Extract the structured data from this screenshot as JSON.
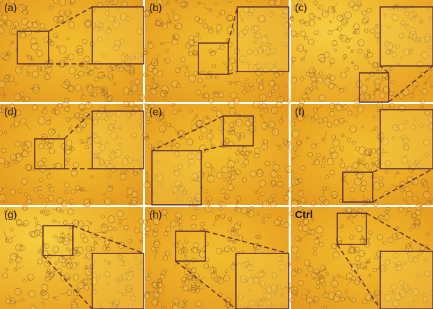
{
  "panels": [
    "(a)",
    "(b)",
    "(c)",
    "(d)",
    "(e)",
    "(f)",
    "(g)",
    "(h)",
    "Ctrl"
  ]
}
